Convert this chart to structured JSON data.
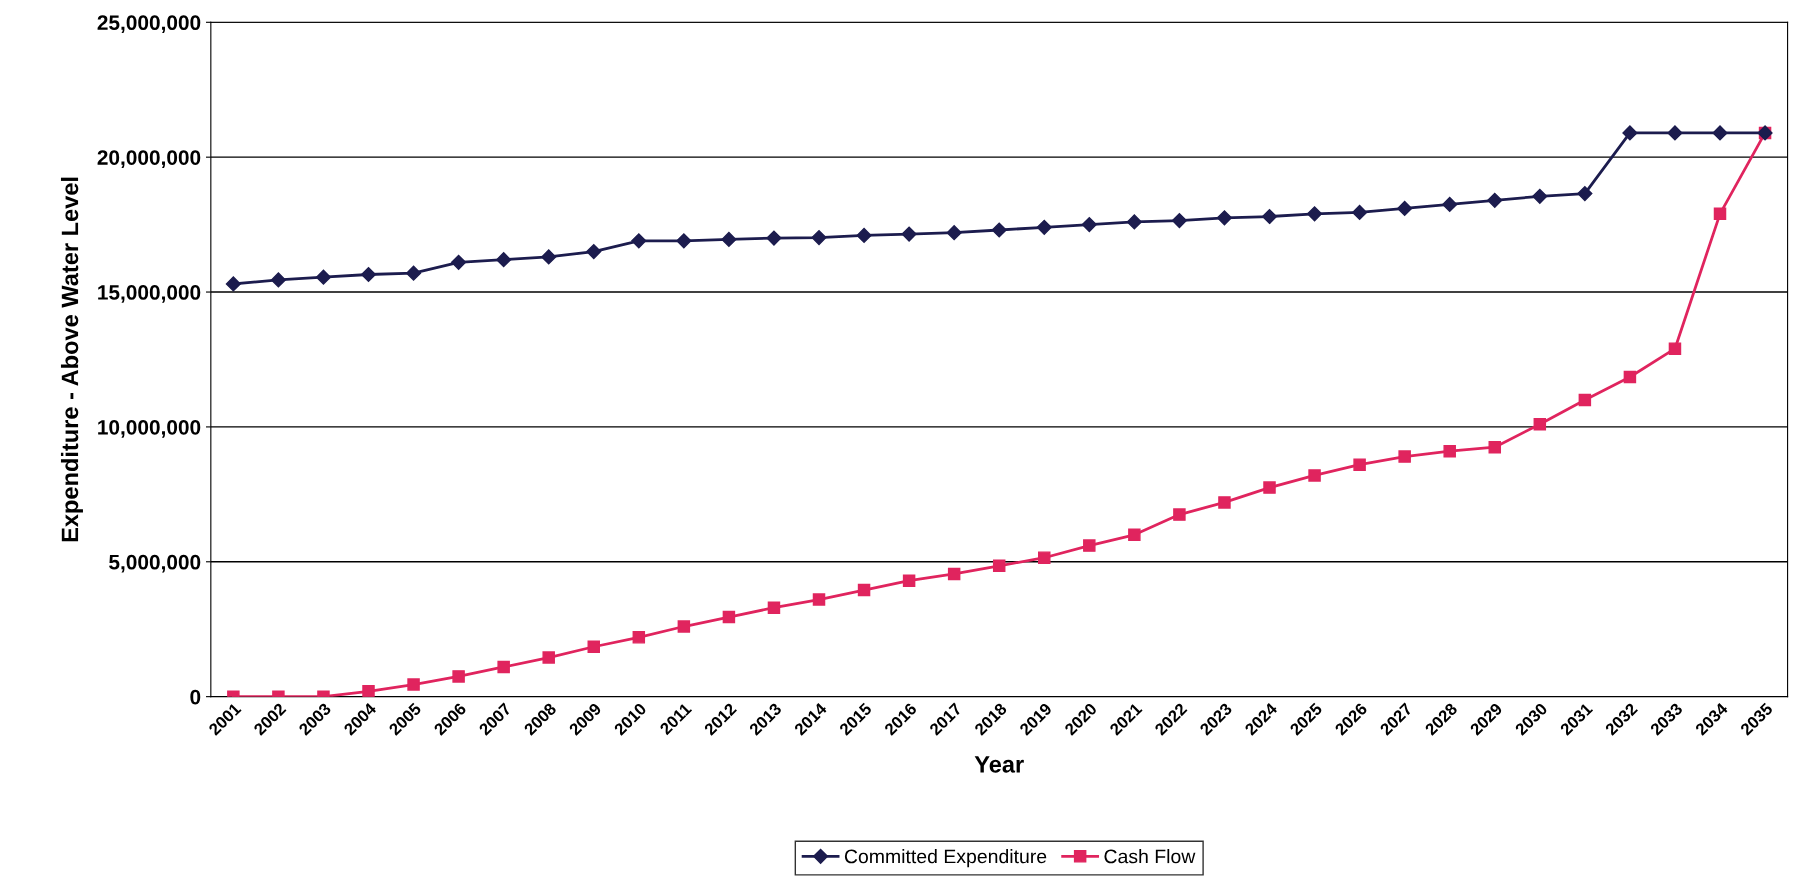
{
  "chart_data": {
    "type": "line",
    "xlabel": "Year",
    "ylabel": "Expenditure - Above Water Level",
    "categories": [
      "2001",
      "2002",
      "2003",
      "2004",
      "2005",
      "2006",
      "2007",
      "2008",
      "2009",
      "2010",
      "2011",
      "2012",
      "2013",
      "2014",
      "2015",
      "2016",
      "2017",
      "2018",
      "2019",
      "2020",
      "2021",
      "2022",
      "2023",
      "2024",
      "2025",
      "2026",
      "2027",
      "2028",
      "2029",
      "2030",
      "2031",
      "2032",
      "2033",
      "2034",
      "2035"
    ],
    "series": [
      {
        "name": "Committed Expenditure",
        "color": "#1c1c4e",
        "marker": "diamond",
        "values": [
          15300000,
          15450000,
          15550000,
          15650000,
          15700000,
          16100000,
          16200000,
          16300000,
          16500000,
          16900000,
          16900000,
          16950000,
          17000000,
          17020000,
          17100000,
          17150000,
          17200000,
          17300000,
          17400000,
          17500000,
          17600000,
          17650000,
          17750000,
          17800000,
          17900000,
          17950000,
          18100000,
          18250000,
          18400000,
          18550000,
          18650000,
          20900000,
          20900000,
          20900000,
          20900000
        ]
      },
      {
        "name": "Cash Flow",
        "color": "#e0245e",
        "marker": "square",
        "values": [
          0,
          0,
          0,
          200000,
          450000,
          750000,
          1100000,
          1450000,
          1850000,
          2200000,
          2600000,
          2950000,
          3300000,
          3600000,
          3950000,
          4300000,
          4550000,
          4850000,
          5150000,
          5600000,
          6000000,
          6750000,
          7200000,
          7750000,
          8200000,
          8600000,
          8900000,
          9100000,
          9250000,
          10100000,
          11000000,
          11850000,
          12900000,
          17900000,
          20900000
        ]
      }
    ],
    "ylim": [
      0,
      25000000
    ],
    "yticks": [
      {
        "value": 0,
        "label": "0"
      },
      {
        "value": 5000000,
        "label": "5,000,000"
      },
      {
        "value": 10000000,
        "label": "10,000,000"
      },
      {
        "value": 15000000,
        "label": "15,000,000"
      },
      {
        "value": 20000000,
        "label": "20,000,000"
      },
      {
        "value": 25000000,
        "label": "25,000,000"
      }
    ],
    "grid": "y",
    "legend": "bottom",
    "line_style": "solid"
  }
}
